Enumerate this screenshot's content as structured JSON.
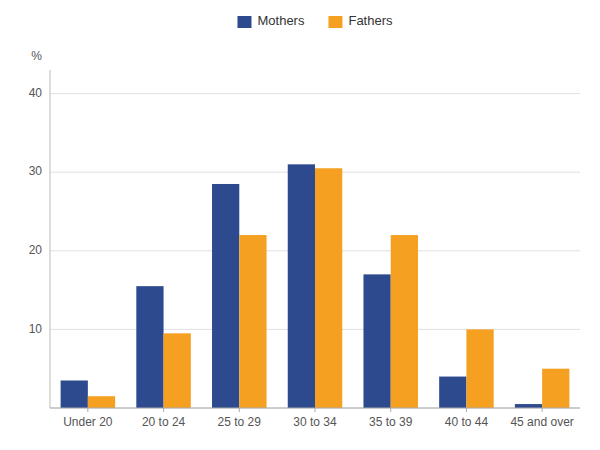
{
  "chart_data": {
    "type": "bar",
    "categories": [
      "Under 20",
      "20 to 24",
      "25 to 29",
      "30 to 34",
      "35 to 39",
      "40 to 44",
      "45 and over"
    ],
    "series": [
      {
        "name": "Mothers",
        "color": "#2e4a8e",
        "values": [
          3.5,
          15.5,
          28.5,
          31.0,
          17.0,
          4.0,
          0.5
        ]
      },
      {
        "name": "Fathers",
        "color": "#f5a020",
        "values": [
          1.5,
          9.5,
          22.0,
          30.5,
          22.0,
          10.0,
          5.0
        ]
      }
    ],
    "y_label": "%",
    "ylim": [
      0,
      43
    ],
    "yticks": [
      {
        "value": 0,
        "label": ""
      },
      10,
      20,
      30,
      40
    ],
    "grid": true,
    "legend": "top"
  }
}
